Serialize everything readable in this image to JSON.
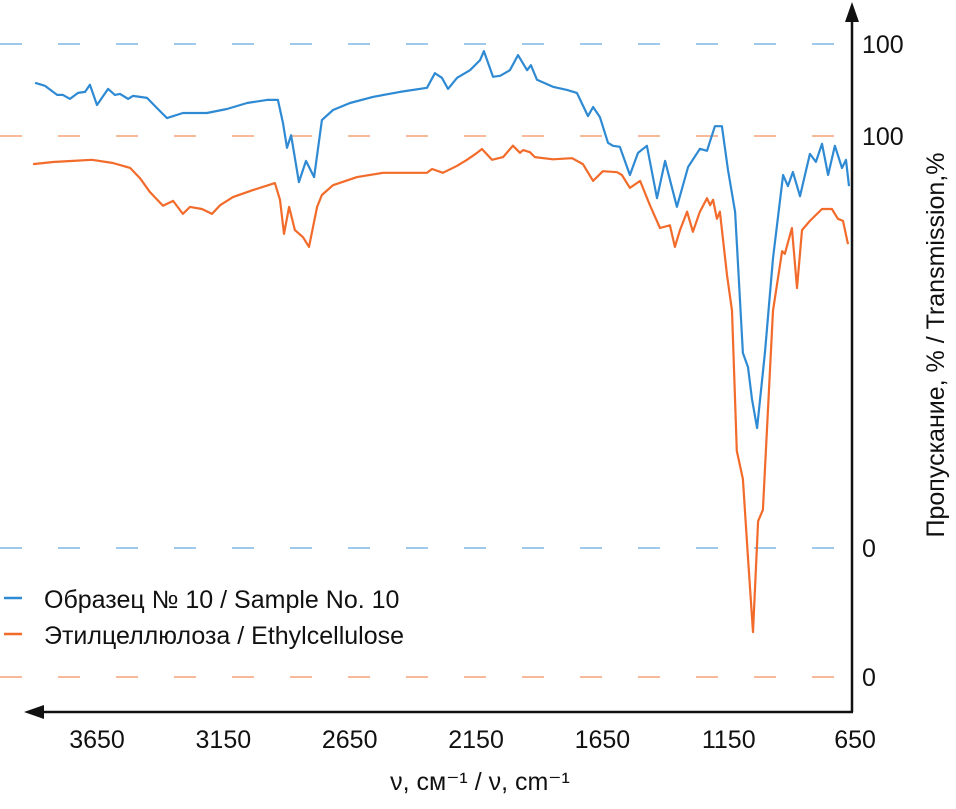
{
  "chart_data": {
    "type": "line",
    "title": "",
    "xlabel": "ν, см⁻¹ / ν, cm⁻¹",
    "ylabel": "Пропускание, % / Transmission,%",
    "xlim": [
      3920,
      650
    ],
    "x_reversed": true,
    "x_ticks": [
      3650,
      3150,
      2650,
      2150,
      1650,
      1150,
      650
    ],
    "grid": false,
    "legend_position": "bottom-left",
    "offset_axes": true,
    "series": [
      {
        "name": "Образец № 10 / Sample No. 10",
        "color": "#2f8ad4",
        "ylim": [
          0,
          100
        ],
        "y_ticks": [
          {
            "value": 0,
            "label": "0"
          },
          {
            "value": 100,
            "label": "100"
          }
        ],
        "x": [
          3895,
          3856,
          3808,
          3785,
          3757,
          3725,
          3697,
          3678,
          3650,
          3606,
          3579,
          3559,
          3527,
          3508,
          3452,
          3413,
          3373,
          3310,
          3215,
          3136,
          3056,
          2977,
          2934,
          2914,
          2898,
          2882,
          2851,
          2823,
          2791,
          2760,
          2716,
          2649,
          2558,
          2451,
          2344,
          2313,
          2285,
          2261,
          2225,
          2174,
          2134,
          2119,
          2083,
          2055,
          2016,
          1984,
          1948,
          1933,
          1909,
          1846,
          1790,
          1751,
          1707,
          1687,
          1660,
          1628,
          1608,
          1581,
          1541,
          1509,
          1474,
          1434,
          1402,
          1355,
          1311,
          1264,
          1236,
          1205,
          1177,
          1153,
          1125,
          1094,
          1074,
          1058,
          1038,
          1007,
          975,
          935,
          916,
          896,
          868,
          829,
          805,
          781,
          757,
          730,
          702,
          686,
          674
        ],
        "y": [
          92.3,
          91.7,
          89.9,
          89.9,
          89.1,
          90.3,
          90.5,
          91.9,
          87.9,
          91.1,
          89.9,
          90.1,
          89.1,
          89.7,
          89.3,
          87.3,
          85.3,
          86.3,
          86.3,
          87.1,
          88.3,
          88.9,
          88.9,
          84.3,
          79.4,
          81.9,
          72.6,
          76.8,
          73.6,
          84.9,
          86.9,
          88.3,
          89.5,
          90.5,
          91.3,
          94.2,
          93.3,
          91.1,
          93.3,
          94.8,
          96.8,
          98.6,
          93.5,
          93.7,
          94.8,
          97.8,
          94.8,
          95.8,
          92.9,
          91.5,
          90.9,
          90.3,
          85.7,
          87.5,
          85.5,
          80.4,
          79.8,
          79.6,
          74.0,
          78.4,
          79.8,
          69.4,
          76.8,
          67.7,
          75.6,
          79.2,
          78.8,
          83.7,
          83.7,
          75.0,
          66.7,
          38.7,
          35.9,
          29.5,
          23.8,
          38.7,
          57.5,
          74.0,
          71.8,
          74.6,
          69.8,
          78.2,
          76.6,
          80.2,
          74.0,
          79.8,
          75.4,
          77.0,
          71.8
        ]
      },
      {
        "name": "Этилцеллюлоза / Ethylcellulose",
        "color": "#f26b2a",
        "ylim": [
          0,
          100
        ],
        "y_ticks": [
          {
            "value": 0,
            "label": "0"
          },
          {
            "value": 100,
            "label": "100"
          }
        ],
        "x": [
          3903,
          3824,
          3745,
          3670,
          3587,
          3519,
          3480,
          3440,
          3389,
          3349,
          3310,
          3282,
          3235,
          3195,
          3163,
          3112,
          3033,
          2946,
          2926,
          2910,
          2890,
          2867,
          2835,
          2811,
          2779,
          2760,
          2716,
          2621,
          2518,
          2344,
          2324,
          2281,
          2225,
          2186,
          2146,
          2127,
          2087,
          2043,
          2004,
          1976,
          1964,
          1937,
          1917,
          1846,
          1770,
          1727,
          1687,
          1648,
          1592,
          1573,
          1541,
          1501,
          1462,
          1422,
          1383,
          1363,
          1343,
          1315,
          1292,
          1264,
          1236,
          1224,
          1212,
          1197,
          1185,
          1157,
          1137,
          1118,
          1094,
          1074,
          1054,
          1034,
          1015,
          975,
          939,
          928,
          900,
          880,
          860,
          829,
          781,
          742,
          718,
          698,
          678
        ],
        "y": [
          94.8,
          95.2,
          95.4,
          95.6,
          95.0,
          94.1,
          92.2,
          89.6,
          87.1,
          88.0,
          85.6,
          86.9,
          86.5,
          85.6,
          87.2,
          88.7,
          90.0,
          91.3,
          88.2,
          81.9,
          86.9,
          82.6,
          81.3,
          79.5,
          86.9,
          89.1,
          90.9,
          92.4,
          93.2,
          93.2,
          93.9,
          93.2,
          94.5,
          95.6,
          96.9,
          97.6,
          95.6,
          96.1,
          98.2,
          96.9,
          97.4,
          97.0,
          96.1,
          95.7,
          95.9,
          94.8,
          91.7,
          93.5,
          93.3,
          92.8,
          90.4,
          91.7,
          87.2,
          83.0,
          83.5,
          79.5,
          82.6,
          86.0,
          82.3,
          86.0,
          88.5,
          87.2,
          88.2,
          84.7,
          86.0,
          74.3,
          67.7,
          41.8,
          36.6,
          22.0,
          8.3,
          28.8,
          30.9,
          67.7,
          78.7,
          78.2,
          83.0,
          71.9,
          82.6,
          84.3,
          86.5,
          86.5,
          84.7,
          84.3,
          80.0
        ]
      }
    ]
  }
}
